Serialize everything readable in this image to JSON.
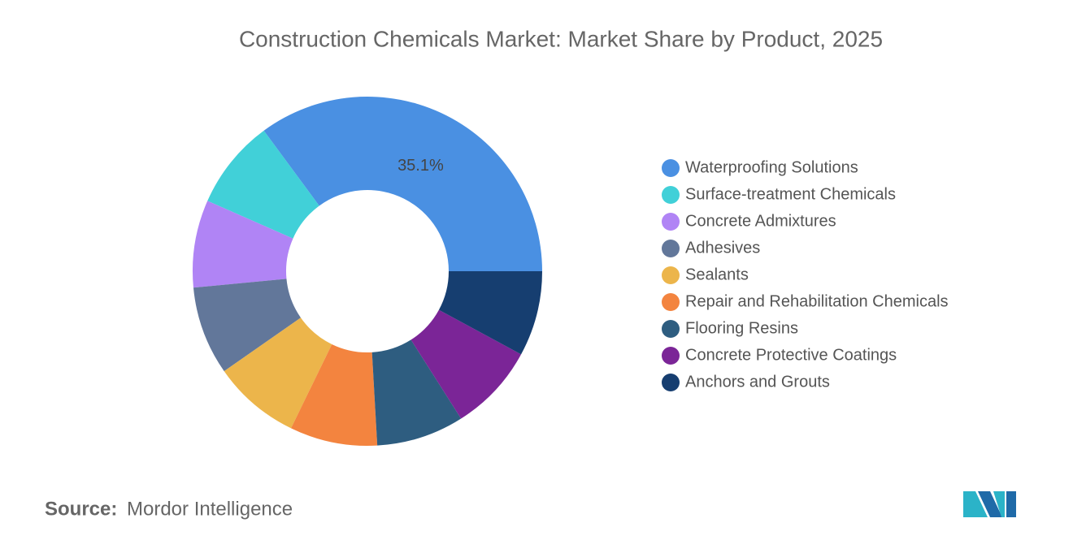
{
  "chart_data": {
    "type": "donut",
    "title": "Construction Chemicals Market: Market Share by Product, 2025",
    "categories": [
      "Waterproofing Solutions",
      "Surface-treatment Chemicals",
      "Concrete Admixtures",
      "Adhesives",
      "Sealants",
      "Repair and Rehabilitation Chemicals",
      "Flooring Resins",
      "Concrete Protective Coatings",
      "Anchors and Grouts"
    ],
    "values": [
      35.1,
      8.3,
      8.1,
      8.2,
      8.1,
      8.1,
      8.1,
      8.1,
      7.9
    ],
    "value_labels": [
      "35.1%",
      null,
      null,
      null,
      null,
      null,
      null,
      null,
      null
    ],
    "colors": [
      "#4a90e2",
      "#41d0d8",
      "#b084f5",
      "#62779a",
      "#ecb54b",
      "#f3843f",
      "#2e5d80",
      "#7b2597",
      "#163e70"
    ],
    "legend": "right"
  },
  "source_label": "Source:",
  "source": "Mordor Intelligence"
}
